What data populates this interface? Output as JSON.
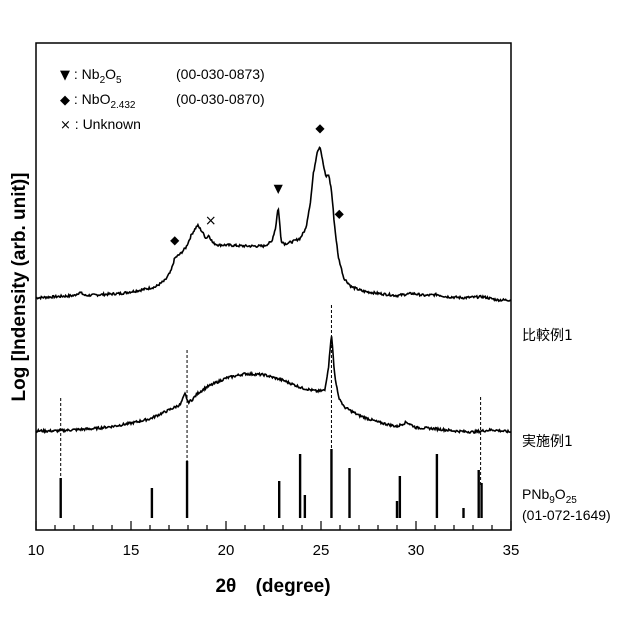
{
  "chart_data": {
    "type": "line",
    "xlabel_main": "2θ",
    "xlabel_unit": "(degree)",
    "ylabel": "Log [Indensity  (arb. unit)]",
    "xlim": [
      10,
      35
    ],
    "xticks": [
      "10",
      "15",
      "20",
      "25",
      "30",
      "35"
    ],
    "legend": [
      {
        "marker": "▼",
        "prefix": " : Nb",
        "sub1": "2",
        "mid": "O",
        "sub2": "5",
        "card": "(00-030-0873)"
      },
      {
        "marker": "◆",
        "prefix": " : NbO",
        "sub1": "2.432",
        "mid": "",
        "sub2": "",
        "card": "(00-030-0870)"
      },
      {
        "marker": "×",
        "prefix": " : Unknown",
        "sub1": "",
        "mid": "",
        "sub2": "",
        "card": ""
      }
    ],
    "series": [
      {
        "name": "比較例1",
        "x": [
          10,
          11,
          12,
          12.3,
          12.6,
          13.5,
          14.5,
          15.5,
          16.3,
          16.8,
          17.1,
          17.3,
          17.6,
          17.9,
          18.2,
          18.5,
          18.75,
          18.95,
          19.1,
          19.3,
          19.6,
          20,
          21,
          22,
          22.4,
          22.6,
          22.75,
          22.9,
          23.1,
          23.5,
          23.9,
          24.2,
          24.45,
          24.6,
          24.8,
          24.95,
          25.1,
          25.25,
          25.4,
          25.55,
          25.7,
          25.9,
          26.2,
          26.6,
          27.2,
          28,
          29,
          29.8,
          30.5,
          31.1,
          31.6,
          32.5,
          33.5,
          34.3,
          35
        ],
        "y": [
          1.62,
          1.63,
          1.64,
          1.67,
          1.64,
          1.65,
          1.66,
          1.69,
          1.72,
          1.78,
          1.86,
          1.98,
          2.02,
          2.08,
          2.2,
          2.28,
          2.22,
          2.16,
          2.19,
          2.12,
          2.1,
          2.1,
          2.09,
          2.09,
          2.13,
          2.25,
          2.45,
          2.14,
          2.11,
          2.13,
          2.16,
          2.25,
          2.5,
          2.75,
          2.95,
          3.0,
          2.85,
          2.72,
          2.74,
          2.6,
          2.3,
          2.0,
          1.8,
          1.72,
          1.68,
          1.66,
          1.64,
          1.66,
          1.64,
          1.65,
          1.63,
          1.62,
          1.63,
          1.6,
          1.6
        ]
      },
      {
        "name": "実施例1",
        "x": [
          10,
          11,
          12,
          13,
          14,
          15,
          16,
          17,
          17.6,
          17.85,
          18.0,
          18.2,
          18.5,
          19,
          20,
          21,
          22,
          23,
          24,
          24.8,
          25.2,
          25.4,
          25.55,
          25.7,
          25.9,
          26.2,
          27,
          28,
          29,
          29.5,
          30,
          31,
          32,
          33,
          34,
          35
        ],
        "y": [
          0.56,
          0.56,
          0.57,
          0.58,
          0.6,
          0.63,
          0.67,
          0.75,
          0.8,
          0.9,
          0.82,
          0.84,
          0.9,
          0.96,
          1.04,
          1.08,
          1.07,
          1.02,
          0.95,
          0.92,
          0.93,
          1.15,
          1.45,
          1.1,
          0.88,
          0.78,
          0.7,
          0.64,
          0.6,
          0.64,
          0.59,
          0.58,
          0.56,
          0.55,
          0.57,
          0.55
        ]
      }
    ],
    "reference": {
      "name_base": "PNb",
      "name_sub1": "9",
      "name_mid": "O",
      "name_sub2": "25",
      "card": "(01-072-1649)",
      "peaks": [
        {
          "x": 11.3,
          "h": 0.4
        },
        {
          "x": 16.1,
          "h": 0.3
        },
        {
          "x": 17.95,
          "h": 0.57
        },
        {
          "x": 22.8,
          "h": 0.37
        },
        {
          "x": 23.9,
          "h": 0.64
        },
        {
          "x": 24.15,
          "h": 0.23
        },
        {
          "x": 25.55,
          "h": 0.69
        },
        {
          "x": 26.5,
          "h": 0.5
        },
        {
          "x": 29.0,
          "h": 0.17
        },
        {
          "x": 29.15,
          "h": 0.42
        },
        {
          "x": 31.1,
          "h": 0.64
        },
        {
          "x": 32.5,
          "h": 0.1
        },
        {
          "x": 33.3,
          "h": 0.48
        },
        {
          "x": 33.45,
          "h": 0.35
        }
      ]
    },
    "dashed_guides_x": [
      11.3,
      17.95,
      25.55,
      33.4
    ],
    "markers": [
      {
        "symbol": "▼",
        "x": 22.75
      },
      {
        "symbol": "◆",
        "x": 17.3
      },
      {
        "symbol": "◆",
        "x": 24.95
      },
      {
        "symbol": "◆",
        "x": 25.75
      },
      {
        "symbol": "×",
        "x": 19.2
      }
    ]
  }
}
